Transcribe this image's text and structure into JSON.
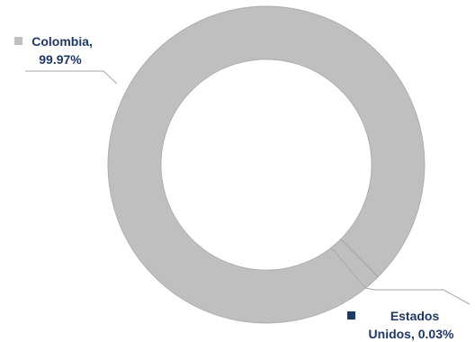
{
  "chart_data": {
    "type": "pie",
    "variant": "donut",
    "categories": [
      "Colombia",
      "Estados Unidos"
    ],
    "values": [
      99.97,
      0.03
    ],
    "unit": "%",
    "colors": [
      "#bfbfbf",
      "#1f3864"
    ],
    "data_labels": [
      {
        "lines": [
          "Colombia,",
          "99.97%"
        ]
      },
      {
        "lines": [
          "Estados",
          "Unidos, 0.03%"
        ]
      }
    ],
    "label_color": "#1f3864",
    "leader_line_color": "#a6a6a6",
    "legend": "none"
  }
}
